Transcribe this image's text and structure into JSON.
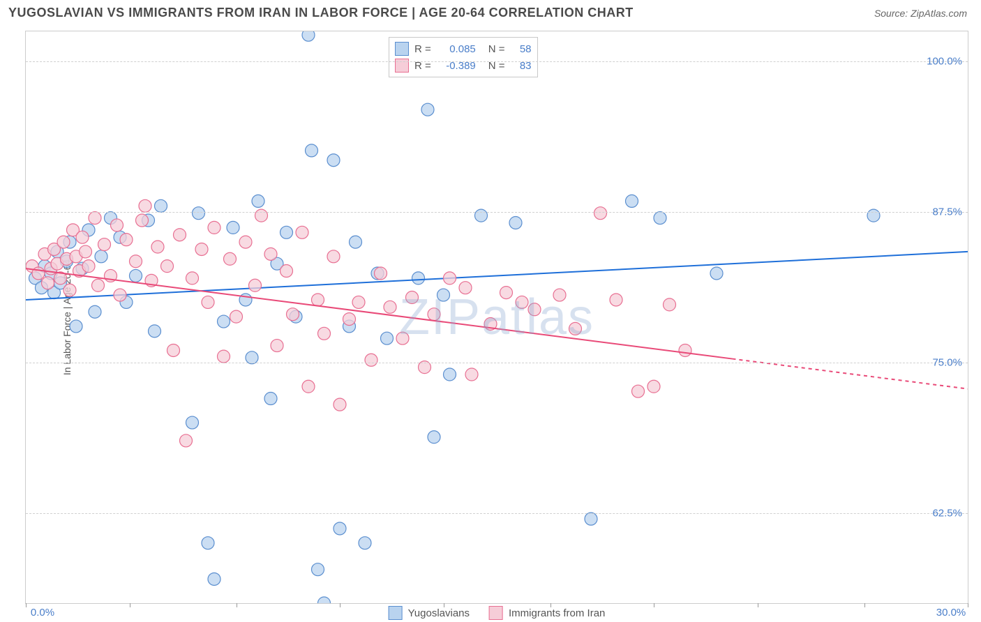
{
  "header": {
    "title": "YUGOSLAVIAN VS IMMIGRANTS FROM IRAN IN LABOR FORCE | AGE 20-64 CORRELATION CHART",
    "source": "Source: ZipAtlas.com"
  },
  "watermark": "ZIPatlas",
  "chart": {
    "type": "scatter",
    "background_color": "#ffffff",
    "border_color": "#cccccc",
    "grid_color": "#d0d0d0",
    "ylabel": "In Labor Force | Age 20-64",
    "ylabel_fontsize": 14,
    "ylabel_color": "#555555",
    "tick_font_color": "#4a7ec9",
    "tick_fontsize": 15,
    "xlim": [
      0,
      30
    ],
    "ylim": [
      55,
      102.5
    ],
    "xtick_positions": [
      0,
      3.3,
      6.7,
      10,
      13.3,
      16.7,
      20,
      23.3,
      26.7,
      30
    ],
    "xtick_labels": [
      "0.0%",
      "",
      "",
      "",
      "",
      "",
      "",
      "",
      "",
      "30.0%"
    ],
    "ytick_positions": [
      62.5,
      75.0,
      87.5,
      100.0
    ],
    "ytick_labels": [
      "62.5%",
      "75.0%",
      "87.5%",
      "100.0%"
    ],
    "series": [
      {
        "name": "Yugoslavians",
        "marker_fill": "#b9d3ef",
        "marker_stroke": "#5a8ecf",
        "marker_radius": 9,
        "marker_opacity": 0.75,
        "line_color": "#1e6fd9",
        "line_width": 2,
        "trend": {
          "x0": 0,
          "y0": 80.2,
          "x1": 30,
          "y1": 84.2,
          "dash_from_x": 30
        },
        "R": "0.085",
        "N": "58",
        "points": [
          [
            0.3,
            82.0
          ],
          [
            0.5,
            81.2
          ],
          [
            0.6,
            83.0
          ],
          [
            0.8,
            82.4
          ],
          [
            0.9,
            80.8
          ],
          [
            1.0,
            84.2
          ],
          [
            1.1,
            81.6
          ],
          [
            1.3,
            83.4
          ],
          [
            1.4,
            85.0
          ],
          [
            1.6,
            78.0
          ],
          [
            1.8,
            82.8
          ],
          [
            2.0,
            86.0
          ],
          [
            2.2,
            79.2
          ],
          [
            2.4,
            83.8
          ],
          [
            2.7,
            87.0
          ],
          [
            3.0,
            85.4
          ],
          [
            3.2,
            80.0
          ],
          [
            3.5,
            82.2
          ],
          [
            3.9,
            86.8
          ],
          [
            4.1,
            77.6
          ],
          [
            4.3,
            88.0
          ],
          [
            5.3,
            70.0
          ],
          [
            5.5,
            87.4
          ],
          [
            5.8,
            60.0
          ],
          [
            6.0,
            57.0
          ],
          [
            6.3,
            78.4
          ],
          [
            6.6,
            86.2
          ],
          [
            7.0,
            80.2
          ],
          [
            7.2,
            75.4
          ],
          [
            7.4,
            88.4
          ],
          [
            7.8,
            72.0
          ],
          [
            8.0,
            83.2
          ],
          [
            8.3,
            85.8
          ],
          [
            8.6,
            78.8
          ],
          [
            9.0,
            102.2
          ],
          [
            9.1,
            92.6
          ],
          [
            9.3,
            57.8
          ],
          [
            9.5,
            55.0
          ],
          [
            9.8,
            91.8
          ],
          [
            10.0,
            61.2
          ],
          [
            10.3,
            78.0
          ],
          [
            10.5,
            85.0
          ],
          [
            10.8,
            60.0
          ],
          [
            11.2,
            82.4
          ],
          [
            11.5,
            77.0
          ],
          [
            12.5,
            82.0
          ],
          [
            12.8,
            96.0
          ],
          [
            13.0,
            68.8
          ],
          [
            13.3,
            80.6
          ],
          [
            13.5,
            74.0
          ],
          [
            14.5,
            87.2
          ],
          [
            15.6,
            86.6
          ],
          [
            18.0,
            62.0
          ],
          [
            19.3,
            88.4
          ],
          [
            20.2,
            87.0
          ],
          [
            22.0,
            82.4
          ],
          [
            27.0,
            87.2
          ]
        ]
      },
      {
        "name": "Immigrants from Iran",
        "marker_fill": "#f6cdd8",
        "marker_stroke": "#e86f92",
        "marker_radius": 9,
        "marker_opacity": 0.75,
        "line_color": "#e94a78",
        "line_width": 2,
        "trend": {
          "x0": 0,
          "y0": 82.8,
          "x1": 30,
          "y1": 72.8,
          "dash_from_x": 22.5
        },
        "R": "-0.389",
        "N": "83",
        "points": [
          [
            0.2,
            83.0
          ],
          [
            0.4,
            82.4
          ],
          [
            0.6,
            84.0
          ],
          [
            0.7,
            81.6
          ],
          [
            0.8,
            82.8
          ],
          [
            0.9,
            84.4
          ],
          [
            1.0,
            83.2
          ],
          [
            1.1,
            82.0
          ],
          [
            1.2,
            85.0
          ],
          [
            1.3,
            83.6
          ],
          [
            1.4,
            81.0
          ],
          [
            1.5,
            86.0
          ],
          [
            1.6,
            83.8
          ],
          [
            1.7,
            82.6
          ],
          [
            1.8,
            85.4
          ],
          [
            1.9,
            84.2
          ],
          [
            2.0,
            83.0
          ],
          [
            2.2,
            87.0
          ],
          [
            2.3,
            81.4
          ],
          [
            2.5,
            84.8
          ],
          [
            2.7,
            82.2
          ],
          [
            2.9,
            86.4
          ],
          [
            3.0,
            80.6
          ],
          [
            3.2,
            85.2
          ],
          [
            3.5,
            83.4
          ],
          [
            3.7,
            86.8
          ],
          [
            3.8,
            88.0
          ],
          [
            4.0,
            81.8
          ],
          [
            4.2,
            84.6
          ],
          [
            4.5,
            83.0
          ],
          [
            4.7,
            76.0
          ],
          [
            4.9,
            85.6
          ],
          [
            5.1,
            68.5
          ],
          [
            5.3,
            82.0
          ],
          [
            5.6,
            84.4
          ],
          [
            5.8,
            80.0
          ],
          [
            6.0,
            86.2
          ],
          [
            6.3,
            75.5
          ],
          [
            6.5,
            83.6
          ],
          [
            6.7,
            78.8
          ],
          [
            7.0,
            85.0
          ],
          [
            7.3,
            81.4
          ],
          [
            7.5,
            87.2
          ],
          [
            7.8,
            84.0
          ],
          [
            8.0,
            76.4
          ],
          [
            8.3,
            82.6
          ],
          [
            8.5,
            79.0
          ],
          [
            8.8,
            85.8
          ],
          [
            9.0,
            73.0
          ],
          [
            9.3,
            80.2
          ],
          [
            9.5,
            77.4
          ],
          [
            9.8,
            83.8
          ],
          [
            10.0,
            71.5
          ],
          [
            10.3,
            78.6
          ],
          [
            10.6,
            80.0
          ],
          [
            11.0,
            75.2
          ],
          [
            11.3,
            82.4
          ],
          [
            11.6,
            79.6
          ],
          [
            12.0,
            77.0
          ],
          [
            12.3,
            80.4
          ],
          [
            12.7,
            74.6
          ],
          [
            13.0,
            79.0
          ],
          [
            13.5,
            82.0
          ],
          [
            14.0,
            81.2
          ],
          [
            14.2,
            74.0
          ],
          [
            14.8,
            78.2
          ],
          [
            15.3,
            80.8
          ],
          [
            15.8,
            80.0
          ],
          [
            16.2,
            79.4
          ],
          [
            17.0,
            80.6
          ],
          [
            17.5,
            77.8
          ],
          [
            18.3,
            87.4
          ],
          [
            18.8,
            80.2
          ],
          [
            19.5,
            72.6
          ],
          [
            20.0,
            73.0
          ],
          [
            20.5,
            79.8
          ],
          [
            21.0,
            76.0
          ]
        ]
      }
    ],
    "corr_legend": {
      "border_color": "#c8c8c8",
      "label_color": "#555555",
      "value_color": "#4a7ec9"
    },
    "bottom_legend": {
      "font_color": "#555555"
    }
  }
}
